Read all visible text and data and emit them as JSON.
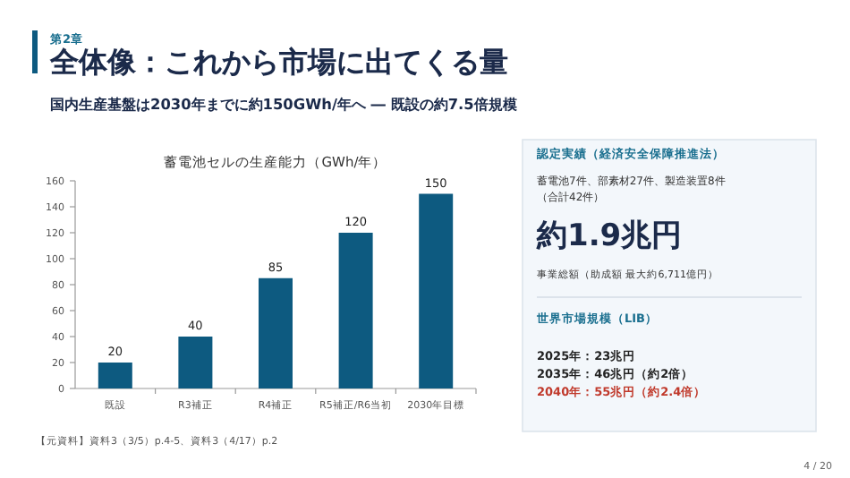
{
  "chart_data": [
    {
      "type": "bar",
      "title": "蓄電池セルの生産能力（GWh/年）",
      "categories": [
        "既設",
        "R3補正",
        "R4補正",
        "R5補正/R6当初",
        "2030年目標"
      ],
      "values": [
        20,
        40,
        85,
        120,
        150
      ],
      "color": "#0d5a80",
      "ylim": [
        0,
        160
      ],
      "yticks": [
        0,
        20,
        40,
        60,
        80,
        100,
        120,
        140,
        160
      ],
      "grid": false,
      "data_labels": true,
      "annotations": [
        "第2章",
        "全体像：これから市場に出てくる量",
        "国内生産基盤は2030年までに約150GWh/年へ ― 既設の約7.5倍規模",
        "【元資料】資料3（3/5）p.4-5、資料3（4/17）p.2",
        "4 / 20"
      ]
    },
    {
      "type": "other",
      "title": "認定実績（経済安全保障推進法）",
      "annotations": [
        "蓄電池7件、部素材27件、製造装置8件",
        "（合計42件）",
        "約1.9兆円",
        "事業総額（助成額 最大約6,711億円）",
        "世界市場規模（LIB）",
        "2025年：23兆円",
        "2035年：46兆円（約2倍）",
        "2040年：55兆円（約2.4倍）"
      ]
    }
  ]
}
